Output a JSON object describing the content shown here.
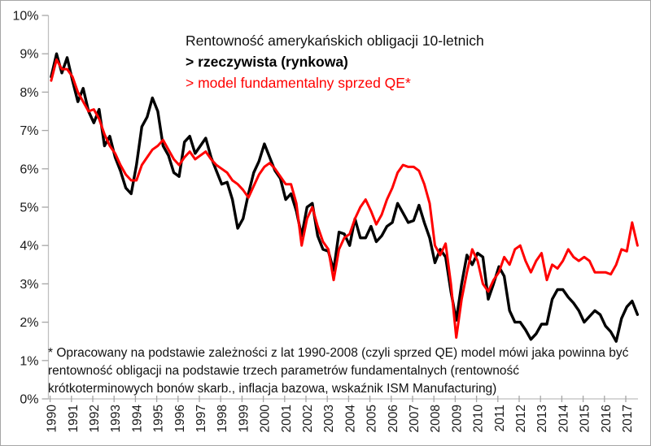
{
  "chart_data": {
    "type": "line",
    "title": "Rentowność amerykańskich obligacji 10-letnich",
    "legend": [
      {
        "label": "> rzeczywista (rynkowa)",
        "color": "#000000",
        "bold": true
      },
      {
        "label": "> model fundamentalny sprzed QE*",
        "color": "#ff0000",
        "bold": false
      }
    ],
    "footnote_lines": [
      "* Opracowany na podstawie zależności z lat 1990-2008 (czyli sprzed QE) model mówi jaka powinna być",
      "rentowność obligacji na podstawie trzech parametrów fundamentalnych (rentowność",
      "krótkoterminowych bonów skarb., inflacja bazowa, wskaźnik ISM Manufacturing)"
    ],
    "y_tick_labels": [
      "0%",
      "1%",
      "2%",
      "3%",
      "4%",
      "5%",
      "6%",
      "7%",
      "8%",
      "9%",
      "10%"
    ],
    "x_tick_labels": [
      "1990",
      "1991",
      "1992",
      "1993",
      "1994",
      "1995",
      "1996",
      "1997",
      "1998",
      "1999",
      "2000",
      "2001",
      "2002",
      "2003",
      "2004",
      "2005",
      "2006",
      "2007",
      "2008",
      "2009",
      "2010",
      "2011",
      "2012",
      "2013",
      "2014",
      "2015",
      "2016",
      "2017"
    ],
    "ylim": [
      0,
      10
    ],
    "x_start": 1990,
    "x_step": 0.25,
    "grid": false,
    "legend_position": "top-inside",
    "axis_color": "#bfbfbf",
    "tick_color": "#a6a6a6",
    "tick_label_color": "#1a1a1a",
    "series": [
      {
        "name": "rzeczywista (rynkowa)",
        "color": "#000000",
        "stroke_width": 3.4,
        "values": [
          8.4,
          9.0,
          8.5,
          8.9,
          8.3,
          7.75,
          8.1,
          7.5,
          7.2,
          7.55,
          6.6,
          6.85,
          6.3,
          5.95,
          5.5,
          5.35,
          6.1,
          7.1,
          7.35,
          7.85,
          7.5,
          6.6,
          6.35,
          5.9,
          5.8,
          6.7,
          6.85,
          6.4,
          6.6,
          6.8,
          6.3,
          5.95,
          5.6,
          5.65,
          5.2,
          4.45,
          4.7,
          5.35,
          5.9,
          6.2,
          6.65,
          6.3,
          5.95,
          5.75,
          5.2,
          5.35,
          4.9,
          4.25,
          5.0,
          5.1,
          4.25,
          3.9,
          3.85,
          3.35,
          4.35,
          4.3,
          4.0,
          4.7,
          4.2,
          4.2,
          4.5,
          4.1,
          4.25,
          4.5,
          4.6,
          5.1,
          4.85,
          4.6,
          4.65,
          5.05,
          4.6,
          4.2,
          3.55,
          3.9,
          3.7,
          2.8,
          2.05,
          3.0,
          3.75,
          3.5,
          3.8,
          3.7,
          2.6,
          3.0,
          3.45,
          3.2,
          2.3,
          2.0,
          2.0,
          1.8,
          1.55,
          1.7,
          1.95,
          1.95,
          2.6,
          2.85,
          2.85,
          2.65,
          2.5,
          2.3,
          2.0,
          2.15,
          2.3,
          2.2,
          1.9,
          1.75,
          1.5,
          2.1,
          2.4,
          2.55,
          2.2
        ]
      },
      {
        "name": "model fundamentalny sprzed QE",
        "color": "#ff0000",
        "stroke_width": 3.0,
        "values": [
          8.3,
          8.85,
          8.6,
          8.6,
          8.4,
          8.0,
          7.75,
          7.5,
          7.55,
          7.3,
          6.9,
          6.6,
          6.4,
          6.1,
          5.85,
          5.7,
          5.7,
          6.1,
          6.3,
          6.5,
          6.6,
          6.75,
          6.5,
          6.25,
          6.1,
          6.3,
          6.45,
          6.25,
          6.35,
          6.45,
          6.25,
          6.1,
          6.0,
          5.9,
          5.7,
          5.6,
          5.45,
          5.25,
          5.55,
          5.85,
          6.05,
          6.15,
          6.0,
          5.8,
          5.6,
          5.6,
          5.1,
          4.0,
          4.7,
          5.0,
          4.5,
          4.1,
          3.9,
          3.1,
          3.9,
          4.2,
          4.3,
          4.7,
          5.0,
          5.2,
          4.9,
          4.55,
          4.8,
          5.2,
          5.5,
          5.9,
          6.1,
          6.05,
          6.05,
          5.95,
          5.6,
          5.1,
          4.0,
          3.75,
          4.05,
          3.0,
          1.6,
          2.6,
          3.3,
          3.9,
          3.6,
          3.0,
          2.8,
          3.1,
          3.3,
          3.7,
          3.5,
          3.9,
          4.0,
          3.6,
          3.3,
          3.6,
          3.8,
          3.1,
          3.5,
          3.4,
          3.6,
          3.9,
          3.7,
          3.6,
          3.7,
          3.6,
          3.3,
          3.3,
          3.3,
          3.25,
          3.5,
          3.9,
          3.85,
          4.6,
          4.0
        ]
      }
    ]
  }
}
